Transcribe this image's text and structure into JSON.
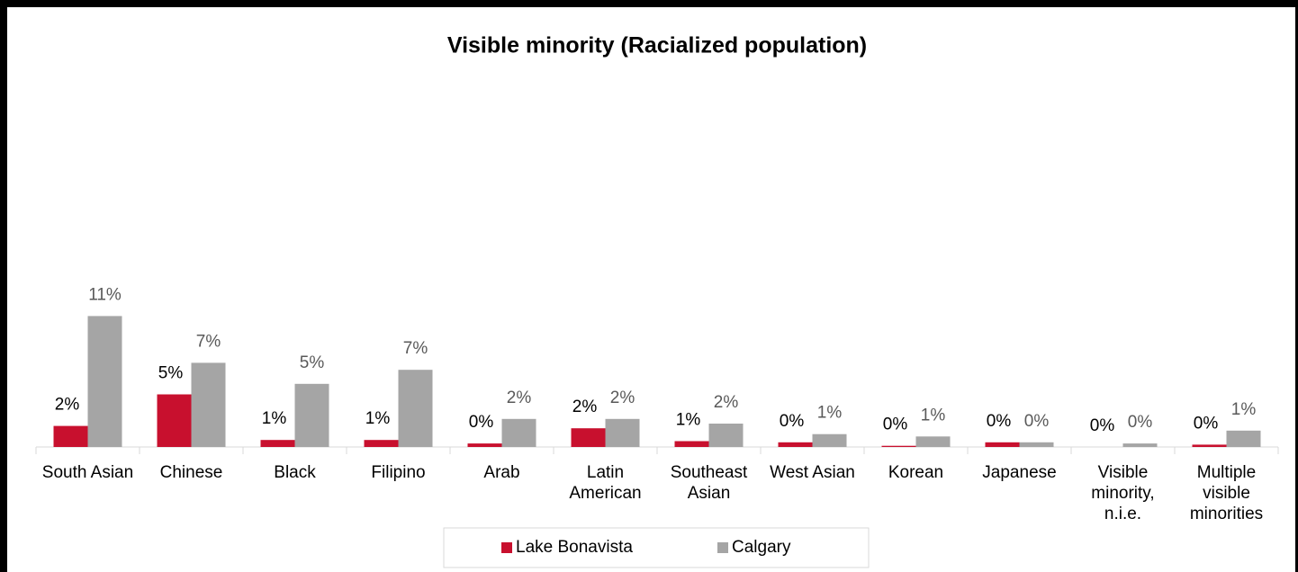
{
  "chart_data": {
    "type": "bar",
    "title": "Visible minority (Racialized population)",
    "categories": [
      "South Asian",
      "Chinese",
      "Black",
      "Filipino",
      "Arab",
      "Latin American",
      "Southeast Asian",
      "West Asian",
      "Korean",
      "Japanese",
      "Visible minority, n.i.e.",
      "Multiple visible minorities"
    ],
    "series": [
      {
        "name": "Lake Bonavista",
        "color": "#c8102e",
        "label_color": "#000000",
        "values": [
          1.8,
          4.5,
          0.6,
          0.6,
          0.3,
          1.6,
          0.5,
          0.4,
          0.1,
          0.4,
          0.0,
          0.2
        ],
        "value_labels": [
          "2%",
          "5%",
          "1%",
          "1%",
          "0%",
          "2%",
          "1%",
          "0%",
          "0%",
          "0%",
          "0%",
          "0%"
        ]
      },
      {
        "name": "Calgary",
        "color": "#a5a5a5",
        "label_color": "#595959",
        "values": [
          11.2,
          7.2,
          5.4,
          6.6,
          2.4,
          2.4,
          2.0,
          1.1,
          0.9,
          0.4,
          0.3,
          1.4
        ],
        "value_labels": [
          "11%",
          "7%",
          "5%",
          "7%",
          "2%",
          "2%",
          "2%",
          "1%",
          "1%",
          "0%",
          "0%",
          "1%"
        ]
      }
    ],
    "legend": "bottom"
  }
}
